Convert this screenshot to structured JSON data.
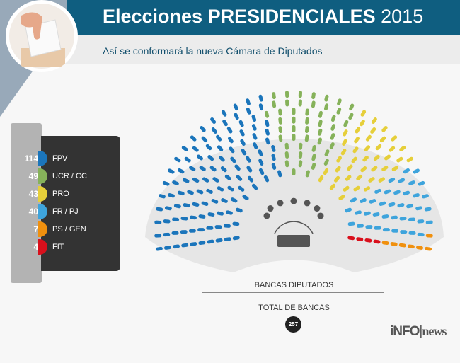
{
  "header": {
    "title_main": "Elecciones PRESIDENCIALES",
    "title_year": "2015",
    "subtitle": "Así se conformará la nueva Cámara de Diputados"
  },
  "legend": [
    {
      "count": "114",
      "label": "FPV",
      "color": "#1b75bb"
    },
    {
      "count": "49",
      "label": "UCR / CC",
      "color": "#86b25a"
    },
    {
      "count": "43",
      "label": "PRO",
      "color": "#e6cf3a"
    },
    {
      "count": "40",
      "label": "FR / PJ",
      "color": "#3ea4dc"
    },
    {
      "count": "7",
      "label": "PS / GEN",
      "color": "#f0900e"
    },
    {
      "count": "4",
      "label": "FIT",
      "color": "#d9101c"
    }
  ],
  "chamber": {
    "caption": "BANCAS DIPUTADOS",
    "total_label": "TOTAL DE BANCAS",
    "total": "257"
  },
  "logo": {
    "info": "iNFO",
    "news": "news"
  }
}
